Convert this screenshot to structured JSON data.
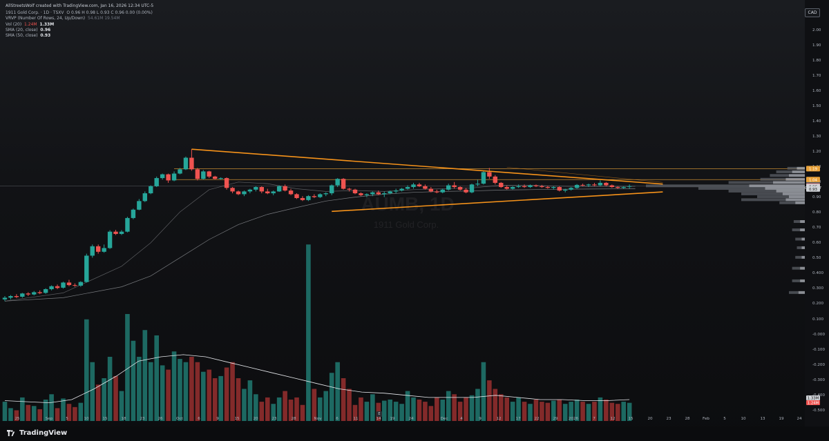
{
  "header": {
    "attribution": "AllStreetsWolf created with TradingView.com, Jan 16, 2026 12:34 UTC-5",
    "symbol_line": "1911 Gold Corp. · 1D · TSXV",
    "ohlc": "O 0.96  H 0.98  L 0.93  C 0.96  0.00 (0.00%)",
    "vrvp": "VRVP (Number Of Rows, 24, Up/Down)",
    "vrvp_values": "54.61M   19.54M",
    "vol_label": "Vol (20)",
    "vol_value1": "1.24M",
    "vol_value2": "1.33M",
    "sma20_label": "SMA (20, close)",
    "sma20_value": "0.96",
    "sma50_label": "SMA (50, close)",
    "sma50_value": "0.93"
  },
  "currency": "CAD",
  "watermark": {
    "ticker": "AUMB, 1D",
    "name": "1911 Gold Corp."
  },
  "footer": {
    "brand": "TradingView"
  },
  "goto_label": "E",
  "colors": {
    "up": "#26a69a",
    "down": "#ef5350",
    "trendline": "#f7931a",
    "sma": "#d0d3d8",
    "hline": "#e8a23a"
  },
  "chart_data": {
    "type": "candlestick",
    "price_axis": {
      "scale": "log",
      "ticks": [
        "2.00",
        "1.90",
        "1.80",
        "1.70",
        "1.60",
        "1.50",
        "1.40",
        "1.30",
        "1.20",
        "1.10",
        "1.00",
        "0.90",
        "0.80",
        "0.70",
        "0.60",
        "0.50",
        "0.400",
        "0.300",
        "0.200",
        "0.100",
        "-0.000",
        "-0.100",
        "-0.200",
        "-0.300",
        "-0.400",
        "-0.500"
      ],
      "labels": [
        {
          "text": "1.19",
          "price": 1.19,
          "color": "#e8a23a"
        },
        {
          "text": "1.04",
          "price": 1.04,
          "color": "#e8a23a"
        },
        {
          "text": "0.97",
          "price": 0.975,
          "color": "#5a5f68"
        },
        {
          "text": "0.96",
          "price": 0.96,
          "color": "#ef5350"
        },
        {
          "text": "01:25:27",
          "price": 0.942,
          "color": "#ef5350"
        },
        {
          "text": "0.96",
          "price": 0.955,
          "color": "#d0d3d8"
        },
        {
          "text": "0.93",
          "price": 0.928,
          "color": "#d0d3d8"
        }
      ],
      "volume_labels": [
        {
          "text": "1.33M",
          "color": "#d0d3d8"
        },
        {
          "text": "1.24M",
          "color": "#ef5350"
        }
      ]
    },
    "time_axis": [
      "25",
      "Sep",
      "5",
      "10",
      "15",
      "18",
      "23",
      "26",
      "Oct",
      "6",
      "9",
      "15",
      "20",
      "23",
      "28",
      "Nov",
      "6",
      "11",
      "14",
      "19",
      "24",
      "Dec",
      "4",
      "9",
      "12",
      "17",
      "22",
      "29",
      "2026",
      "7",
      "12",
      "15",
      "20",
      "23",
      "28",
      "Feb",
      "5",
      "10",
      "13",
      "19",
      "24"
    ],
    "bars": [
      {
        "o": 0.24,
        "h": 0.25,
        "l": 0.235,
        "c": 0.245,
        "v": 0.18
      },
      {
        "o": 0.245,
        "h": 0.253,
        "l": 0.24,
        "c": 0.25,
        "v": 0.12
      },
      {
        "o": 0.25,
        "h": 0.256,
        "l": 0.244,
        "c": 0.247,
        "v": 0.1
      },
      {
        "o": 0.248,
        "h": 0.26,
        "l": 0.245,
        "c": 0.258,
        "v": 0.22
      },
      {
        "o": 0.258,
        "h": 0.262,
        "l": 0.25,
        "c": 0.255,
        "v": 0.15
      },
      {
        "o": 0.255,
        "h": 0.266,
        "l": 0.252,
        "c": 0.262,
        "v": 0.14
      },
      {
        "o": 0.262,
        "h": 0.268,
        "l": 0.256,
        "c": 0.259,
        "v": 0.11
      },
      {
        "o": 0.26,
        "h": 0.275,
        "l": 0.257,
        "c": 0.272,
        "v": 0.2
      },
      {
        "o": 0.272,
        "h": 0.285,
        "l": 0.268,
        "c": 0.282,
        "v": 0.25
      },
      {
        "o": 0.282,
        "h": 0.288,
        "l": 0.272,
        "c": 0.276,
        "v": 0.12
      },
      {
        "o": 0.277,
        "h": 0.298,
        "l": 0.274,
        "c": 0.295,
        "v": 0.21
      },
      {
        "o": 0.295,
        "h": 0.305,
        "l": 0.282,
        "c": 0.286,
        "v": 0.16
      },
      {
        "o": 0.286,
        "h": 0.292,
        "l": 0.28,
        "c": 0.284,
        "v": 0.13
      },
      {
        "o": 0.284,
        "h": 0.3,
        "l": 0.28,
        "c": 0.297,
        "v": 0.17
      },
      {
        "o": 0.297,
        "h": 0.42,
        "l": 0.295,
        "c": 0.41,
        "v": 0.95
      },
      {
        "o": 0.41,
        "h": 0.47,
        "l": 0.4,
        "c": 0.46,
        "v": 0.55
      },
      {
        "o": 0.46,
        "h": 0.47,
        "l": 0.42,
        "c": 0.43,
        "v": 0.34
      },
      {
        "o": 0.43,
        "h": 0.47,
        "l": 0.425,
        "c": 0.45,
        "v": 0.4
      },
      {
        "o": 0.45,
        "h": 0.56,
        "l": 0.445,
        "c": 0.55,
        "v": 0.6
      },
      {
        "o": 0.55,
        "h": 0.562,
        "l": 0.528,
        "c": 0.535,
        "v": 0.42
      },
      {
        "o": 0.535,
        "h": 0.56,
        "l": 0.528,
        "c": 0.55,
        "v": 0.28
      },
      {
        "o": 0.55,
        "h": 0.66,
        "l": 0.545,
        "c": 0.65,
        "v": 1.0
      },
      {
        "o": 0.65,
        "h": 0.73,
        "l": 0.64,
        "c": 0.72,
        "v": 0.75
      },
      {
        "o": 0.72,
        "h": 0.82,
        "l": 0.715,
        "c": 0.8,
        "v": 0.6
      },
      {
        "o": 0.8,
        "h": 0.9,
        "l": 0.79,
        "c": 0.88,
        "v": 0.85
      },
      {
        "o": 0.88,
        "h": 0.97,
        "l": 0.87,
        "c": 0.96,
        "v": 0.55
      },
      {
        "o": 0.96,
        "h": 1.08,
        "l": 0.95,
        "c": 1.06,
        "v": 0.8
      },
      {
        "o": 1.06,
        "h": 1.12,
        "l": 1.04,
        "c": 1.11,
        "v": 0.52
      },
      {
        "o": 1.11,
        "h": 1.12,
        "l": 1.0,
        "c": 1.03,
        "v": 0.48
      },
      {
        "o": 1.03,
        "h": 1.15,
        "l": 1.02,
        "c": 1.12,
        "v": 0.65
      },
      {
        "o": 1.12,
        "h": 1.2,
        "l": 1.11,
        "c": 1.18,
        "v": 0.58
      },
      {
        "o": 1.18,
        "h": 1.38,
        "l": 1.17,
        "c": 1.36,
        "v": 0.55
      },
      {
        "o": 1.36,
        "h": 1.51,
        "l": 1.16,
        "c": 1.18,
        "v": 0.6
      },
      {
        "o": 1.18,
        "h": 1.2,
        "l": 1.03,
        "c": 1.05,
        "v": 0.55
      },
      {
        "o": 1.05,
        "h": 1.17,
        "l": 1.04,
        "c": 1.15,
        "v": 0.46
      },
      {
        "o": 1.15,
        "h": 1.16,
        "l": 1.06,
        "c": 1.08,
        "v": 0.48
      },
      {
        "o": 1.08,
        "h": 1.09,
        "l": 1.04,
        "c": 1.05,
        "v": 0.4
      },
      {
        "o": 1.05,
        "h": 1.07,
        "l": 1.04,
        "c": 1.06,
        "v": 0.42
      },
      {
        "o": 1.06,
        "h": 1.07,
        "l": 0.92,
        "c": 0.94,
        "v": 0.5
      },
      {
        "o": 0.94,
        "h": 0.95,
        "l": 0.88,
        "c": 0.9,
        "v": 0.55
      },
      {
        "o": 0.9,
        "h": 0.91,
        "l": 0.86,
        "c": 0.87,
        "v": 0.4
      },
      {
        "o": 0.87,
        "h": 0.91,
        "l": 0.85,
        "c": 0.9,
        "v": 0.3
      },
      {
        "o": 0.9,
        "h": 0.93,
        "l": 0.88,
        "c": 0.92,
        "v": 0.38
      },
      {
        "o": 0.92,
        "h": 0.96,
        "l": 0.9,
        "c": 0.95,
        "v": 0.25
      },
      {
        "o": 0.95,
        "h": 0.96,
        "l": 0.88,
        "c": 0.9,
        "v": 0.18
      },
      {
        "o": 0.9,
        "h": 0.93,
        "l": 0.87,
        "c": 0.88,
        "v": 0.22
      },
      {
        "o": 0.88,
        "h": 0.91,
        "l": 0.86,
        "c": 0.9,
        "v": 0.16
      },
      {
        "o": 0.9,
        "h": 0.97,
        "l": 0.895,
        "c": 0.96,
        "v": 0.22
      },
      {
        "o": 0.96,
        "h": 0.98,
        "l": 0.9,
        "c": 0.91,
        "v": 0.28
      },
      {
        "o": 0.91,
        "h": 0.93,
        "l": 0.86,
        "c": 0.87,
        "v": 0.2
      },
      {
        "o": 0.87,
        "h": 0.88,
        "l": 0.82,
        "c": 0.83,
        "v": 0.22
      },
      {
        "o": 0.83,
        "h": 0.85,
        "l": 0.8,
        "c": 0.81,
        "v": 0.15
      },
      {
        "o": 0.81,
        "h": 0.86,
        "l": 0.8,
        "c": 0.85,
        "v": 1.65
      },
      {
        "o": 0.85,
        "h": 0.87,
        "l": 0.83,
        "c": 0.84,
        "v": 0.3
      },
      {
        "o": 0.84,
        "h": 0.88,
        "l": 0.83,
        "c": 0.87,
        "v": 0.22
      },
      {
        "o": 0.87,
        "h": 0.89,
        "l": 0.85,
        "c": 0.88,
        "v": 0.28
      },
      {
        "o": 0.88,
        "h": 0.98,
        "l": 0.86,
        "c": 0.97,
        "v": 0.45
      },
      {
        "o": 0.97,
        "h": 1.06,
        "l": 0.95,
        "c": 1.05,
        "v": 0.55
      },
      {
        "o": 1.05,
        "h": 1.06,
        "l": 0.92,
        "c": 0.93,
        "v": 0.4
      },
      {
        "o": 0.93,
        "h": 0.94,
        "l": 0.9,
        "c": 0.92,
        "v": 0.3
      },
      {
        "o": 0.92,
        "h": 0.93,
        "l": 0.87,
        "c": 0.88,
        "v": 0.15
      },
      {
        "o": 0.88,
        "h": 0.89,
        "l": 0.85,
        "c": 0.86,
        "v": 0.22
      },
      {
        "o": 0.86,
        "h": 0.88,
        "l": 0.84,
        "c": 0.87,
        "v": 0.18
      },
      {
        "o": 0.87,
        "h": 0.9,
        "l": 0.85,
        "c": 0.89,
        "v": 0.25
      },
      {
        "o": 0.89,
        "h": 0.91,
        "l": 0.86,
        "c": 0.87,
        "v": 0.17
      },
      {
        "o": 0.87,
        "h": 0.9,
        "l": 0.84,
        "c": 0.88,
        "v": 0.19
      },
      {
        "o": 0.88,
        "h": 0.91,
        "l": 0.87,
        "c": 0.9,
        "v": 0.2
      },
      {
        "o": 0.9,
        "h": 0.93,
        "l": 0.88,
        "c": 0.91,
        "v": 0.18
      },
      {
        "o": 0.91,
        "h": 0.94,
        "l": 0.9,
        "c": 0.93,
        "v": 0.16
      },
      {
        "o": 0.93,
        "h": 0.97,
        "l": 0.92,
        "c": 0.95,
        "v": 0.28
      },
      {
        "o": 0.95,
        "h": 1.0,
        "l": 0.93,
        "c": 0.98,
        "v": 0.22
      },
      {
        "o": 0.98,
        "h": 1.0,
        "l": 0.95,
        "c": 0.96,
        "v": 0.2
      },
      {
        "o": 0.96,
        "h": 0.98,
        "l": 0.92,
        "c": 0.93,
        "v": 0.18
      },
      {
        "o": 0.93,
        "h": 0.95,
        "l": 0.89,
        "c": 0.9,
        "v": 0.14
      },
      {
        "o": 0.9,
        "h": 0.92,
        "l": 0.88,
        "c": 0.89,
        "v": 0.22
      },
      {
        "o": 0.89,
        "h": 0.93,
        "l": 0.88,
        "c": 0.92,
        "v": 0.2
      },
      {
        "o": 0.92,
        "h": 0.99,
        "l": 0.91,
        "c": 0.97,
        "v": 0.28
      },
      {
        "o": 0.97,
        "h": 1.01,
        "l": 0.93,
        "c": 0.95,
        "v": 0.25
      },
      {
        "o": 0.95,
        "h": 0.96,
        "l": 0.91,
        "c": 0.92,
        "v": 0.18
      },
      {
        "o": 0.92,
        "h": 0.94,
        "l": 0.88,
        "c": 0.89,
        "v": 0.22
      },
      {
        "o": 0.89,
        "h": 0.99,
        "l": 0.88,
        "c": 0.98,
        "v": 0.24
      },
      {
        "o": 0.98,
        "h": 1.04,
        "l": 0.96,
        "c": 0.99,
        "v": 0.3
      },
      {
        "o": 0.99,
        "h": 1.16,
        "l": 0.98,
        "c": 1.14,
        "v": 0.55
      },
      {
        "o": 1.14,
        "h": 1.2,
        "l": 1.05,
        "c": 1.08,
        "v": 0.38
      },
      {
        "o": 1.08,
        "h": 1.1,
        "l": 0.98,
        "c": 1.0,
        "v": 0.3
      },
      {
        "o": 1.0,
        "h": 1.01,
        "l": 0.94,
        "c": 0.95,
        "v": 0.25
      },
      {
        "o": 0.95,
        "h": 0.97,
        "l": 0.92,
        "c": 0.93,
        "v": 0.22
      },
      {
        "o": 0.93,
        "h": 0.96,
        "l": 0.92,
        "c": 0.95,
        "v": 0.18
      },
      {
        "o": 0.95,
        "h": 0.98,
        "l": 0.94,
        "c": 0.96,
        "v": 0.22
      },
      {
        "o": 0.96,
        "h": 0.98,
        "l": 0.94,
        "c": 0.95,
        "v": 0.18
      },
      {
        "o": 0.95,
        "h": 0.98,
        "l": 0.94,
        "c": 0.97,
        "v": 0.16
      },
      {
        "o": 0.97,
        "h": 0.98,
        "l": 0.95,
        "c": 0.96,
        "v": 0.2
      },
      {
        "o": 0.96,
        "h": 0.975,
        "l": 0.94,
        "c": 0.95,
        "v": 0.18
      },
      {
        "o": 0.95,
        "h": 0.965,
        "l": 0.93,
        "c": 0.94,
        "v": 0.17
      },
      {
        "o": 0.94,
        "h": 0.96,
        "l": 0.92,
        "c": 0.95,
        "v": 0.19
      },
      {
        "o": 0.95,
        "h": 0.96,
        "l": 0.9,
        "c": 0.91,
        "v": 0.2
      },
      {
        "o": 0.91,
        "h": 0.93,
        "l": 0.89,
        "c": 0.92,
        "v": 0.16
      },
      {
        "o": 0.92,
        "h": 0.95,
        "l": 0.91,
        "c": 0.94,
        "v": 0.18
      },
      {
        "o": 0.94,
        "h": 0.985,
        "l": 0.93,
        "c": 0.975,
        "v": 0.2
      },
      {
        "o": 0.975,
        "h": 0.99,
        "l": 0.96,
        "c": 0.97,
        "v": 0.18
      },
      {
        "o": 0.97,
        "h": 0.99,
        "l": 0.95,
        "c": 0.98,
        "v": 0.16
      },
      {
        "o": 0.98,
        "h": 1.0,
        "l": 0.96,
        "c": 0.97,
        "v": 0.18
      },
      {
        "o": 0.97,
        "h": 1.03,
        "l": 0.96,
        "c": 1.0,
        "v": 0.22
      },
      {
        "o": 1.0,
        "h": 1.01,
        "l": 0.96,
        "c": 0.97,
        "v": 0.2
      },
      {
        "o": 0.97,
        "h": 0.98,
        "l": 0.94,
        "c": 0.95,
        "v": 0.17
      },
      {
        "o": 0.95,
        "h": 0.96,
        "l": 0.93,
        "c": 0.94,
        "v": 0.16
      },
      {
        "o": 0.94,
        "h": 0.96,
        "l": 0.93,
        "c": 0.95,
        "v": 0.18
      },
      {
        "o": 0.96,
        "h": 0.98,
        "l": 0.93,
        "c": 0.96,
        "v": 0.17
      }
    ],
    "sma20": [
      [
        0,
        0.235
      ],
      [
        10,
        0.26
      ],
      [
        20,
        0.36
      ],
      [
        25,
        0.48
      ],
      [
        30,
        0.7
      ],
      [
        35,
        0.92
      ],
      [
        40,
        1.01
      ],
      [
        45,
        0.99
      ],
      [
        50,
        0.93
      ],
      [
        55,
        0.9
      ],
      [
        60,
        0.91
      ],
      [
        65,
        0.9
      ],
      [
        70,
        0.92
      ],
      [
        75,
        0.93
      ],
      [
        80,
        0.94
      ],
      [
        85,
        0.97
      ],
      [
        90,
        0.97
      ],
      [
        95,
        0.96
      ],
      [
        100,
        0.955
      ],
      [
        108,
        0.958
      ]
    ],
    "sma50": [
      [
        0,
        0.235
      ],
      [
        10,
        0.245
      ],
      [
        20,
        0.28
      ],
      [
        25,
        0.32
      ],
      [
        30,
        0.4
      ],
      [
        35,
        0.5
      ],
      [
        40,
        0.6
      ],
      [
        45,
        0.68
      ],
      [
        50,
        0.74
      ],
      [
        55,
        0.8
      ],
      [
        60,
        0.84
      ],
      [
        65,
        0.87
      ],
      [
        70,
        0.89
      ],
      [
        75,
        0.9
      ],
      [
        80,
        0.905
      ],
      [
        85,
        0.915
      ],
      [
        90,
        0.92
      ],
      [
        95,
        0.925
      ],
      [
        100,
        0.927
      ],
      [
        108,
        0.93
      ]
    ],
    "vol_ma": [
      0.19,
      0.18,
      0.17,
      0.2,
      0.3,
      0.42,
      0.56,
      0.6,
      0.62,
      0.6,
      0.55,
      0.5,
      0.45,
      0.4,
      0.35,
      0.3,
      0.27,
      0.26,
      0.24,
      0.22,
      0.22,
      0.22,
      0.24,
      0.22,
      0.2,
      0.2,
      0.19,
      0.19,
      0.2
    ],
    "trendlines": [
      {
        "from": [
          32,
          1.51
        ],
        "to": [
          112,
          0.985
        ]
      },
      {
        "from": [
          56,
          0.705
        ],
        "to": [
          112,
          0.895
        ]
      },
      {
        "from": [
          86,
          1.21
        ],
        "to": [
          112,
          1.005
        ],
        "thin": true
      }
    ],
    "hlines": [
      1.19,
      1.04
    ],
    "volume_profile": [
      {
        "price": 1.19,
        "up": 0.05,
        "down": 0.06
      },
      {
        "price": 1.14,
        "up": 0.08,
        "down": 0.1
      },
      {
        "price": 1.09,
        "up": 0.1,
        "down": 0.12
      },
      {
        "price": 1.04,
        "up": 0.12,
        "down": 0.16
      },
      {
        "price": 1.0,
        "up": 0.2,
        "down": 0.28
      },
      {
        "price": 0.96,
        "up": 0.35,
        "down": 0.65
      },
      {
        "price": 0.93,
        "up": 0.25,
        "down": 0.42
      },
      {
        "price": 0.9,
        "up": 0.18,
        "down": 0.3
      },
      {
        "price": 0.87,
        "up": 0.14,
        "down": 0.26
      },
      {
        "price": 0.84,
        "up": 0.1,
        "down": 0.2
      },
      {
        "price": 0.81,
        "up": 0.12,
        "down": 0.28
      },
      {
        "price": 0.78,
        "up": 0.06,
        "down": 0.1
      },
      {
        "price": 0.62,
        "up": 0.03,
        "down": 0.04
      },
      {
        "price": 0.56,
        "up": 0.03,
        "down": 0.05
      },
      {
        "price": 0.5,
        "up": 0.02,
        "down": 0.04
      },
      {
        "price": 0.45,
        "up": 0.02,
        "down": 0.03
      },
      {
        "price": 0.4,
        "up": 0.02,
        "down": 0.04
      },
      {
        "price": 0.35,
        "up": 0.03,
        "down": 0.05
      },
      {
        "price": 0.3,
        "up": 0.03,
        "down": 0.05
      },
      {
        "price": 0.26,
        "up": 0.04,
        "down": 0.06
      }
    ]
  }
}
